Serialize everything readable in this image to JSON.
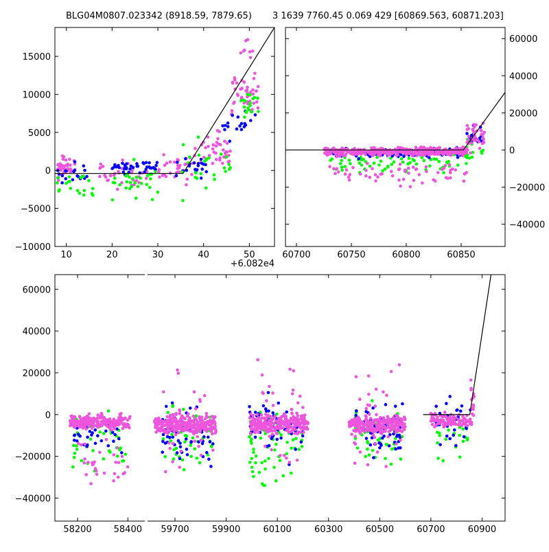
{
  "titles": {
    "left": "BLG04M0807.023342 (8918.59, 7879.65)",
    "right": "3 1639 7760.45 0.069 429 [60869.563, 60871.203]"
  },
  "colors": {
    "green": "#00ff00",
    "blue": "#0000ff",
    "pink": "#ee55dd",
    "line": "#000000"
  },
  "chart_data": [
    {
      "id": "top-left",
      "type": "scatter",
      "title": "BLG04M0807.023342 (8918.59, 7879.65)",
      "x_offset_label": "+6.082e4",
      "xlim": [
        7.5,
        55.5
      ],
      "ylim": [
        -10000,
        18800
      ],
      "x_ticks": [
        10,
        20,
        30,
        40,
        50
      ],
      "y_ticks": [
        -10000,
        -5000,
        0,
        5000,
        10000,
        15000
      ],
      "y_tick_labels": [
        "−10000",
        "−5000",
        "0",
        "5000",
        "10000",
        "15000"
      ],
      "model_line": {
        "x": [
          7.5,
          35.5,
          55.5
        ],
        "y": [
          -400,
          -400,
          18800
        ]
      },
      "series": [
        {
          "name": "pink",
          "color": "pink",
          "clusters": [
            {
              "x": [
                8,
                12
              ],
              "y": [
                -1500,
                2500
              ],
              "n": 40
            },
            {
              "x": [
                17,
                28
              ],
              "y": [
                -3000,
                2000
              ],
              "n": 35
            },
            {
              "x": [
                30,
                38
              ],
              "y": [
                -2500,
                2500
              ],
              "n": 30
            },
            {
              "x": [
                38,
                46
              ],
              "y": [
                -1000,
                7000
              ],
              "n": 40
            },
            {
              "x": [
                46,
                52
              ],
              "y": [
                6000,
                14000
              ],
              "n": 45
            },
            {
              "x": [
                48,
                51
              ],
              "y": [
                14000,
                18500
              ],
              "n": 8
            }
          ]
        },
        {
          "name": "blue",
          "color": "blue",
          "clusters": [
            {
              "x": [
                8,
                15
              ],
              "y": [
                -3000,
                2000
              ],
              "n": 20
            },
            {
              "x": [
                20,
                30
              ],
              "y": [
                -1000,
                2000
              ],
              "n": 40
            },
            {
              "x": [
                34,
                42
              ],
              "y": [
                -1500,
                2500
              ],
              "n": 20
            },
            {
              "x": [
                44,
                52
              ],
              "y": [
                3000,
                10000
              ],
              "n": 18
            }
          ]
        },
        {
          "name": "green",
          "color": "green",
          "clusters": [
            {
              "x": [
                8,
                16
              ],
              "y": [
                -6000,
                1500
              ],
              "n": 20
            },
            {
              "x": [
                20,
                30
              ],
              "y": [
                -5000,
                2000
              ],
              "n": 30
            },
            {
              "x": [
                35,
                46
              ],
              "y": [
                -5000,
                5000
              ],
              "n": 25
            },
            {
              "x": [
                48,
                52
              ],
              "y": [
                6000,
                12000
              ],
              "n": 18
            }
          ]
        }
      ]
    },
    {
      "id": "top-right",
      "type": "scatter",
      "xlim": [
        60690,
        60890
      ],
      "ylim": [
        -52000,
        66000
      ],
      "x_ticks": [
        60700,
        60750,
        60800,
        60850
      ],
      "y_ticks": [
        -40000,
        -20000,
        0,
        20000,
        40000,
        60000
      ],
      "y_tick_labels": [
        "−40000",
        "−20000",
        "0",
        "20000",
        "40000",
        "60000"
      ],
      "model_line": {
        "x": [
          60690,
          60852,
          60890
        ],
        "y": [
          0,
          0,
          31000
        ]
      },
      "series": [
        {
          "name": "green",
          "color": "green",
          "clusters": [
            {
              "x": [
                60730,
                60855
              ],
              "y": [
                -15000,
                2000
              ],
              "n": 70
            },
            {
              "x": [
                60855,
                60870
              ],
              "y": [
                -10000,
                10000
              ],
              "n": 15
            }
          ]
        },
        {
          "name": "blue",
          "color": "blue",
          "clusters": [
            {
              "x": [
                60730,
                60855
              ],
              "y": [
                -6000,
                2500
              ],
              "n": 90
            },
            {
              "x": [
                60855,
                60870
              ],
              "y": [
                0,
                15000
              ],
              "n": 15
            }
          ]
        },
        {
          "name": "pink",
          "color": "pink",
          "clusters": [
            {
              "x": [
                60725,
                60855
              ],
              "y": [
                -4000,
                2500
              ],
              "n": 380
            },
            {
              "x": [
                60730,
                60855
              ],
              "y": [
                -20000,
                -4000
              ],
              "n": 60
            },
            {
              "x": [
                60855,
                60872
              ],
              "y": [
                -5000,
                20000
              ],
              "n": 40
            }
          ]
        }
      ]
    },
    {
      "id": "bottom",
      "type": "scatter",
      "broken_x_axis": true,
      "ylim": [
        -51000,
        67000
      ],
      "y_ticks": [
        -40000,
        -20000,
        0,
        20000,
        40000,
        60000
      ],
      "y_tick_labels": [
        "−40000",
        "−20000",
        "0",
        "20000",
        "40000",
        "60000"
      ],
      "x_segments": [
        {
          "xlim": [
            58110,
            58470
          ],
          "ticks": [
            58200,
            58400
          ]
        },
        {
          "xlim": [
            59590,
            60990
          ],
          "ticks": [
            59700,
            59900,
            60100,
            60300,
            60500,
            60700,
            60900
          ]
        }
      ],
      "model_line": {
        "x": [
          60670,
          60852,
          60935
        ],
        "y": [
          0,
          0,
          67000
        ]
      },
      "series": [
        {
          "name": "green",
          "color": "green",
          "clusters": [
            {
              "x": [
                58180,
                58400
              ],
              "y": [
                -30000,
                5000
              ],
              "n": 40
            },
            {
              "x": [
                59650,
                59850
              ],
              "y": [
                -35000,
                10000
              ],
              "n": 50
            },
            {
              "x": [
                59990,
                60200
              ],
              "y": [
                -40000,
                10000
              ],
              "n": 60
            },
            {
              "x": [
                60400,
                60590
              ],
              "y": [
                -30000,
                10000
              ],
              "n": 50
            },
            {
              "x": [
                60720,
                60855
              ],
              "y": [
                -25000,
                5000
              ],
              "n": 20
            }
          ]
        },
        {
          "name": "blue",
          "color": "blue",
          "clusters": [
            {
              "x": [
                58180,
                58400
              ],
              "y": [
                -20000,
                2000
              ],
              "n": 40
            },
            {
              "x": [
                59650,
                59850
              ],
              "y": [
                -30000,
                10000
              ],
              "n": 60
            },
            {
              "x": [
                59990,
                60200
              ],
              "y": [
                -25000,
                15000
              ],
              "n": 70
            },
            {
              "x": [
                60400,
                60590
              ],
              "y": [
                -25000,
                10000
              ],
              "n": 60
            },
            {
              "x": [
                60720,
                60862
              ],
              "y": [
                -20000,
                15000
              ],
              "n": 30
            }
          ]
        },
        {
          "name": "pink",
          "color": "pink",
          "clusters": [
            {
              "x": [
                58170,
                58410
              ],
              "y": [
                -9000,
                1500
              ],
              "n": 220
            },
            {
              "x": [
                58200,
                58400
              ],
              "y": [
                -40000,
                -9000
              ],
              "n": 30
            },
            {
              "x": [
                59620,
                59860
              ],
              "y": [
                -11000,
                1500
              ],
              "n": 260
            },
            {
              "x": [
                59650,
                59850
              ],
              "y": [
                -40000,
                25000
              ],
              "n": 40
            },
            {
              "x": [
                59990,
                60220
              ],
              "y": [
                -11000,
                1500
              ],
              "n": 260
            },
            {
              "x": [
                60000,
                60200
              ],
              "y": [
                -35000,
                40000
              ],
              "n": 40
            },
            {
              "x": [
                60380,
                60600
              ],
              "y": [
                -11000,
                1500
              ],
              "n": 240
            },
            {
              "x": [
                60400,
                60590
              ],
              "y": [
                -45000,
                38000
              ],
              "n": 40
            },
            {
              "x": [
                60700,
                60860
              ],
              "y": [
                -8000,
                1500
              ],
              "n": 100
            },
            {
              "x": [
                60855,
                60872
              ],
              "y": [
                -5000,
                22000
              ],
              "n": 15
            }
          ]
        }
      ]
    }
  ]
}
